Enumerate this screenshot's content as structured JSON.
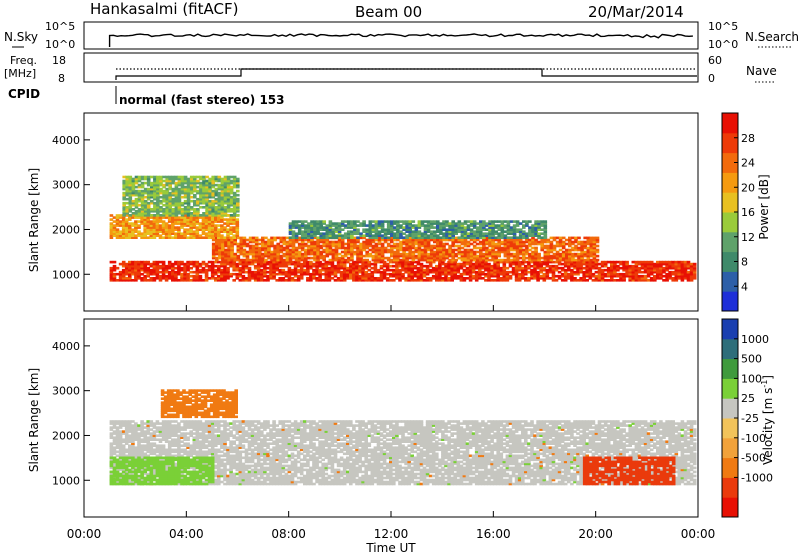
{
  "header": {
    "station": "Hankasalmi (fitACF)",
    "beam": "Beam 00",
    "date": "20/Mar/2014"
  },
  "top_panel": {
    "left_label": "N.Sky",
    "left_ticks": [
      "10^5",
      "10^0"
    ],
    "right_ticks": [
      "10^5",
      "10^0"
    ],
    "right_label": "N.Search"
  },
  "freq_panel": {
    "left_label_1": "Freq.",
    "left_label_2": "[MHz]",
    "left_ticks": [
      "18",
      "8"
    ],
    "right_ticks": [
      "60",
      "0"
    ],
    "right_label": "Nave"
  },
  "cpid": {
    "label": "CPID",
    "mode": "normal (fast stereo) 153"
  },
  "x_axis": {
    "ticks": [
      "00:00",
      "04:00",
      "08:00",
      "12:00",
      "16:00",
      "20:00",
      "00:00"
    ],
    "label": "Time UT"
  },
  "chart_data": [
    {
      "type": "heatmap",
      "quantity": "Power",
      "ylabel": "Slant Range [km]",
      "yticks": [
        "1000",
        "2000",
        "3000",
        "4000"
      ],
      "ylim": [
        180,
        4600
      ],
      "xlim_hours": [
        0,
        24
      ],
      "colorbar_label": "Power [dB]",
      "colorbar_ticks": [
        "4",
        "8",
        "12",
        "16",
        "20",
        "24",
        "28"
      ],
      "colorbar_colors": [
        "#1e2fd8",
        "#2d5fa8",
        "#3f8a6a",
        "#5fa26a",
        "#9acb3a",
        "#e8c020",
        "#f59a10",
        "#f26a0c",
        "#ee3a08",
        "#e81004"
      ],
      "bands": [
        {
          "t0": 1.0,
          "t1": 23.9,
          "r0": 850,
          "r1": 1300,
          "level": 28
        },
        {
          "t0": 5.0,
          "t1": 20.0,
          "r0": 1300,
          "r1": 1800,
          "level": 24
        },
        {
          "t0": 1.0,
          "t1": 6.0,
          "r0": 1800,
          "r1": 2300,
          "level": 20
        },
        {
          "t0": 8.0,
          "t1": 18.0,
          "r0": 1800,
          "r1": 2200,
          "level": 8
        },
        {
          "t0": 1.5,
          "t1": 6.0,
          "r0": 2300,
          "r1": 3200,
          "level": 12
        }
      ]
    },
    {
      "type": "heatmap",
      "quantity": "Velocity",
      "ylabel": "Slant Range [km]",
      "yticks": [
        "1000",
        "2000",
        "3000",
        "4000"
      ],
      "ylim": [
        180,
        4600
      ],
      "xlim_hours": [
        0,
        24
      ],
      "colorbar_label": "Velocity [m s^-1]",
      "colorbar_ticks": [
        "1000",
        "500",
        "100",
        "25",
        "-25",
        "-100",
        "-500",
        "-1000"
      ],
      "colorbar_colors": [
        "#1a3fb0",
        "#2e6e7a",
        "#3f9a3c",
        "#7ad037",
        "#c6c6c0",
        "#f2c35a",
        "#f2a23a",
        "#f07a12",
        "#ea3a0c",
        "#e81004"
      ],
      "bands": [
        {
          "t0": 1.0,
          "t1": 23.9,
          "r0": 900,
          "r1": 2300,
          "level": 0
        },
        {
          "t0": 1.0,
          "t1": 5.0,
          "r0": 900,
          "r1": 1500,
          "level": 100
        },
        {
          "t0": 19.5,
          "t1": 23.0,
          "r0": 900,
          "r1": 1500,
          "level": -500
        },
        {
          "t0": 3.0,
          "t1": 6.0,
          "r0": 2400,
          "r1": 3000,
          "level": -100
        }
      ]
    }
  ]
}
